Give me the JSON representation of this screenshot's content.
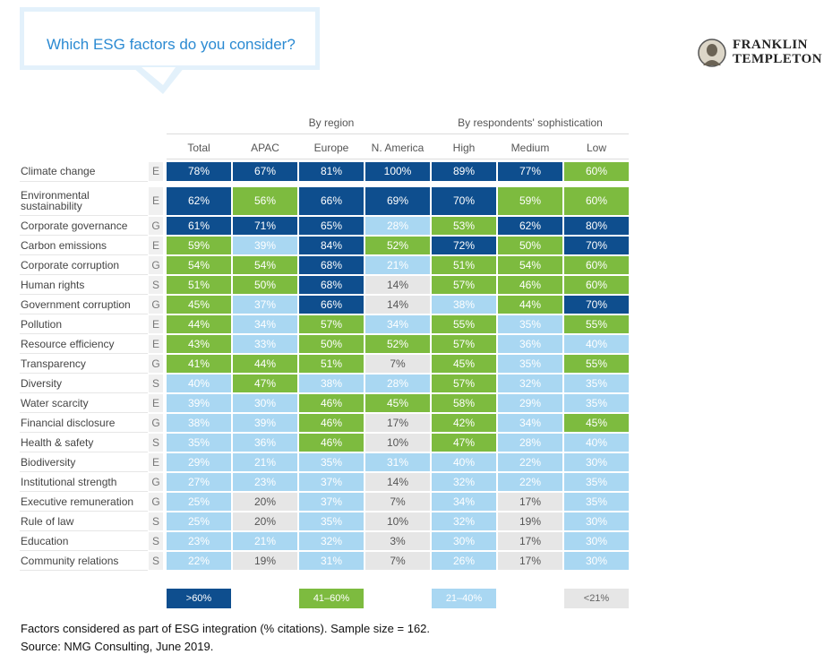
{
  "header": {
    "question": "Which ESG factors do you consider?",
    "logo_line1": "FRANKLIN",
    "logo_line2": "TEMPLETON"
  },
  "chart_data": {
    "type": "table",
    "group_headers": [
      "By region",
      "By respondents' sophistication"
    ],
    "columns": [
      "Total",
      "APAC",
      "Europe",
      "N. America",
      "High",
      "Medium",
      "Low"
    ],
    "rows": [
      {
        "label": "Climate change",
        "cat": "E",
        "values": [
          78,
          67,
          81,
          100,
          89,
          77,
          60
        ]
      },
      {
        "label": "Environmental sustainability",
        "cat": "E",
        "values": [
          62,
          56,
          66,
          69,
          70,
          59,
          60
        ]
      },
      {
        "label": "Corporate governance",
        "cat": "G",
        "values": [
          61,
          71,
          65,
          28,
          53,
          62,
          80
        ]
      },
      {
        "label": "Carbon emissions",
        "cat": "E",
        "values": [
          59,
          39,
          84,
          52,
          72,
          50,
          70
        ]
      },
      {
        "label": "Corporate corruption",
        "cat": "G",
        "values": [
          54,
          54,
          68,
          21,
          51,
          54,
          60
        ]
      },
      {
        "label": "Human rights",
        "cat": "S",
        "values": [
          51,
          50,
          68,
          14,
          57,
          46,
          60
        ]
      },
      {
        "label": "Government corruption",
        "cat": "G",
        "values": [
          45,
          37,
          66,
          14,
          38,
          44,
          70
        ]
      },
      {
        "label": "Pollution",
        "cat": "E",
        "values": [
          44,
          34,
          57,
          34,
          55,
          35,
          55
        ]
      },
      {
        "label": "Resource efficiency",
        "cat": "E",
        "values": [
          43,
          33,
          50,
          52,
          57,
          36,
          40
        ]
      },
      {
        "label": "Transparency",
        "cat": "G",
        "values": [
          41,
          44,
          51,
          7,
          45,
          35,
          55
        ]
      },
      {
        "label": "Diversity",
        "cat": "S",
        "values": [
          40,
          47,
          38,
          28,
          57,
          32,
          35
        ]
      },
      {
        "label": "Water scarcity",
        "cat": "E",
        "values": [
          39,
          30,
          46,
          45,
          58,
          29,
          35
        ]
      },
      {
        "label": "Financial disclosure",
        "cat": "G",
        "values": [
          38,
          39,
          46,
          17,
          42,
          34,
          45
        ]
      },
      {
        "label": "Health & safety",
        "cat": "S",
        "values": [
          35,
          36,
          46,
          10,
          47,
          28,
          40
        ]
      },
      {
        "label": "Biodiversity",
        "cat": "E",
        "values": [
          29,
          21,
          35,
          31,
          40,
          22,
          30
        ]
      },
      {
        "label": "Institutional strength",
        "cat": "G",
        "values": [
          27,
          23,
          37,
          14,
          32,
          22,
          35
        ]
      },
      {
        "label": "Executive remuneration",
        "cat": "G",
        "values": [
          25,
          20,
          37,
          7,
          34,
          17,
          35
        ]
      },
      {
        "label": "Rule of law",
        "cat": "S",
        "values": [
          25,
          20,
          35,
          10,
          32,
          19,
          30
        ]
      },
      {
        "label": "Education",
        "cat": "S",
        "values": [
          23,
          21,
          32,
          3,
          30,
          17,
          30
        ]
      },
      {
        "label": "Community relations",
        "cat": "S",
        "values": [
          22,
          19,
          31,
          7,
          26,
          17,
          30
        ]
      }
    ],
    "legend": [
      {
        "label": ">60%",
        "color": "#0e4e8e",
        "text_color": "#ffffff"
      },
      {
        "label": "41–60%",
        "color": "#7dbb3f",
        "text_color": "#ffffff"
      },
      {
        "label": "21–40%",
        "color": "#a9d7f2",
        "text_color": "#ffffff"
      },
      {
        "label": "<21%",
        "color": "#e6e6e6",
        "text_color": "#666666"
      }
    ]
  },
  "footnotes": {
    "line1": "Factors considered as part of ESG integration (% citations). Sample size = 162.",
    "line2": "Source: NMG Consulting, June 2019."
  }
}
